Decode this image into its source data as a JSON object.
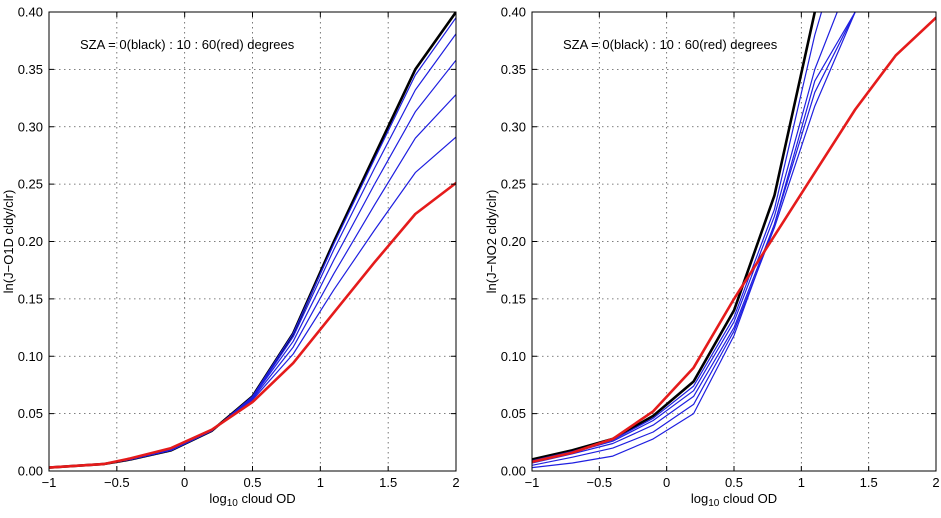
{
  "chart_data": [
    {
      "type": "line",
      "xlabel": "log10 cloud OD",
      "xlabel_main": "log",
      "xlabel_sub": "10",
      "xlabel_rest": " cloud OD",
      "ylabel": "ln(J−O1D cldy/clr)",
      "annotation": "SZA = 0(black) : 10 : 60(red) degrees",
      "xlim": [
        -1,
        2
      ],
      "ylim": [
        0,
        0.4
      ],
      "xticks": [
        -1,
        -0.5,
        0,
        0.5,
        1,
        1.5,
        2
      ],
      "xtick_labels": [
        "−1",
        "−0.5",
        "0",
        "0.5",
        "1",
        "1.5",
        "2"
      ],
      "yticks": [
        0,
        0.05,
        0.1,
        0.15,
        0.2,
        0.25,
        0.3,
        0.35,
        0.4
      ],
      "ytick_labels": [
        "0.00",
        "0.05",
        "0.10",
        "0.15",
        "0.20",
        "0.25",
        "0.30",
        "0.35",
        "0.40"
      ],
      "grid": true,
      "x": [
        -1,
        -0.6,
        -0.4,
        -0.1,
        0.2,
        0.5,
        0.8,
        1.1,
        1.4,
        1.7,
        2.0
      ],
      "series": [
        {
          "color": "#000000",
          "values": [
            0.003,
            0.006,
            0.01,
            0.018,
            0.035,
            0.065,
            0.12,
            0.2,
            0.275,
            0.35,
            0.4
          ]
        },
        {
          "color": "#1f1fe0",
          "values": [
            0.003,
            0.006,
            0.01,
            0.018,
            0.035,
            0.065,
            0.12,
            0.198,
            0.272,
            0.345,
            0.395
          ]
        },
        {
          "color": "#1f1fe0",
          "values": [
            0.003,
            0.006,
            0.01,
            0.018,
            0.035,
            0.064,
            0.117,
            0.193,
            0.264,
            0.332,
            0.381
          ]
        },
        {
          "color": "#1f1fe0",
          "values": [
            0.003,
            0.006,
            0.01,
            0.018,
            0.035,
            0.064,
            0.113,
            0.184,
            0.25,
            0.313,
            0.358
          ]
        },
        {
          "color": "#1f1fe0",
          "values": [
            0.003,
            0.006,
            0.01,
            0.018,
            0.035,
            0.063,
            0.108,
            0.172,
            0.232,
            0.29,
            0.328
          ]
        },
        {
          "color": "#1f1fe0",
          "values": [
            0.003,
            0.006,
            0.01,
            0.019,
            0.035,
            0.062,
            0.102,
            0.158,
            0.21,
            0.26,
            0.291
          ]
        },
        {
          "color": "#e51b1b",
          "values": [
            0.003,
            0.006,
            0.011,
            0.02,
            0.036,
            0.06,
            0.094,
            0.138,
            0.182,
            0.224,
            0.251
          ]
        }
      ]
    },
    {
      "type": "line",
      "xlabel": "log10 cloud OD",
      "xlabel_main": "log",
      "xlabel_sub": "10",
      "xlabel_rest": " cloud OD",
      "ylabel": "ln(J−NO2 cldy/clr)",
      "annotation": "SZA = 0(black) : 10 : 60(red) degrees",
      "xlim": [
        -1,
        2
      ],
      "ylim": [
        0,
        0.4
      ],
      "xticks": [
        -1,
        -0.5,
        0,
        0.5,
        1,
        1.5,
        2
      ],
      "xtick_labels": [
        "−1",
        "−0.5",
        "0",
        "0.5",
        "1",
        "1.5",
        "2"
      ],
      "yticks": [
        0,
        0.05,
        0.1,
        0.15,
        0.2,
        0.25,
        0.3,
        0.35,
        0.4
      ],
      "ytick_labels": [
        "0.00",
        "0.05",
        "0.10",
        "0.15",
        "0.20",
        "0.25",
        "0.30",
        "0.35",
        "0.40"
      ],
      "grid": true,
      "x": [
        -1,
        -0.7,
        -0.4,
        -0.1,
        0.2,
        0.5,
        0.8,
        1.1,
        1.4,
        1.7,
        2.0
      ],
      "series": [
        {
          "color": "#000000",
          "values": [
            0.01,
            0.018,
            0.028,
            0.048,
            0.078,
            0.14,
            0.24,
            0.4,
            null,
            null,
            null
          ]
        },
        {
          "color": "#1f1fe0",
          "values": [
            0.009,
            0.017,
            0.027,
            0.046,
            0.074,
            0.134,
            0.228,
            0.38,
            0.5,
            null,
            null
          ]
        },
        {
          "color": "#1f1fe0",
          "values": [
            0.008,
            0.016,
            0.026,
            0.044,
            0.07,
            0.13,
            0.222,
            0.35,
            0.44,
            null,
            null
          ]
        },
        {
          "color": "#1f1fe0",
          "values": [
            0.007,
            0.015,
            0.024,
            0.04,
            0.065,
            0.125,
            0.215,
            0.33,
            0.4,
            null,
            null
          ]
        },
        {
          "color": "#1f1fe0",
          "values": [
            0.005,
            0.012,
            0.02,
            0.034,
            0.058,
            0.122,
            0.212,
            0.318,
            0.4,
            null,
            null
          ]
        },
        {
          "color": "#1f1fe0",
          "values": [
            0.003,
            0.007,
            0.013,
            0.028,
            0.05,
            0.118,
            0.215,
            0.34,
            0.4,
            null,
            null
          ]
        },
        {
          "color": "#e51b1b",
          "values": [
            0.008,
            0.016,
            0.028,
            0.052,
            0.09,
            0.15,
            0.205,
            0.26,
            0.315,
            0.362,
            0.395
          ]
        }
      ]
    }
  ]
}
